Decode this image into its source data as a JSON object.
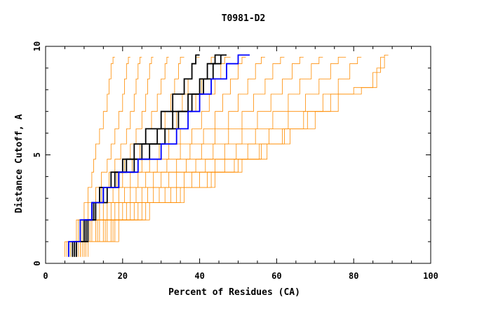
{
  "chart_data": {
    "type": "line",
    "title": "T0981-D2",
    "xlabel": "Percent of Residues (CA)",
    "ylabel": "Distance Cutoff, A",
    "xlim": [
      0,
      100
    ],
    "ylim": [
      0,
      10
    ],
    "xticks": [
      0,
      20,
      40,
      60,
      80,
      100
    ],
    "xtick_labels": [
      "0",
      "20",
      "40",
      "60",
      "80",
      "100"
    ],
    "yticks": [
      0,
      5,
      10
    ],
    "ytick_labels": [
      "0",
      "5",
      "10"
    ],
    "grid": false,
    "legend": "none",
    "colors": {
      "background_curves": "#ff8c00",
      "highlight_black": "#000000",
      "highlight_blue": "#0000ff",
      "axes": "#000000"
    },
    "series": [
      {
        "color": "#ff8c00",
        "x": [
          5,
          8,
          10,
          11,
          12,
          12.5,
          13,
          14,
          15,
          16,
          16.5,
          17,
          17.5,
          18
        ],
        "y": [
          0.3,
          1.0,
          2.0,
          2.8,
          3.5,
          4.2,
          4.8,
          5.5,
          6.2,
          7.0,
          7.8,
          8.5,
          9.2,
          9.5
        ]
      },
      {
        "color": "#ff8c00",
        "x": [
          5.5,
          8.5,
          11,
          13,
          14.5,
          16,
          17,
          18,
          19,
          20,
          20.5,
          21,
          21.5,
          22
        ],
        "y": [
          0.3,
          1.0,
          2.0,
          2.8,
          3.5,
          4.2,
          4.8,
          5.5,
          6.2,
          7.0,
          7.8,
          8.5,
          9.2,
          9.5
        ]
      },
      {
        "color": "#ff8c00",
        "x": [
          6,
          9,
          12,
          14.5,
          16.5,
          18,
          19.5,
          21,
          22,
          23,
          23.5,
          24,
          24.5,
          25
        ],
        "y": [
          0.3,
          1.0,
          2.0,
          2.8,
          3.5,
          4.2,
          4.8,
          5.5,
          6.2,
          7.0,
          7.8,
          8.5,
          9.2,
          9.5
        ]
      },
      {
        "color": "#ff8c00",
        "x": [
          6,
          9.5,
          13,
          16,
          18.5,
          20.5,
          22,
          23.5,
          25,
          26,
          26.5,
          27,
          27.5,
          28
        ],
        "y": [
          0.3,
          1.0,
          2.0,
          2.8,
          3.5,
          4.2,
          4.8,
          5.5,
          6.2,
          7.0,
          7.8,
          8.5,
          9.2,
          9.5
        ]
      },
      {
        "color": "#ff8c00",
        "x": [
          6.5,
          10,
          14,
          17.5,
          20,
          22.5,
          24.5,
          26,
          27.5,
          29,
          30,
          31,
          31.5,
          32
        ],
        "y": [
          0.3,
          1.0,
          2.0,
          2.8,
          3.5,
          4.2,
          4.8,
          5.5,
          6.2,
          7.0,
          7.8,
          8.5,
          9.2,
          9.5
        ]
      },
      {
        "color": "#ff8c00",
        "x": [
          7,
          11,
          15,
          19,
          22,
          25,
          27,
          29,
          31,
          32.5,
          33.5,
          34.5,
          35,
          36
        ],
        "y": [
          0.3,
          1.0,
          2.0,
          2.8,
          3.5,
          4.2,
          4.8,
          5.5,
          6.2,
          7.0,
          7.8,
          8.5,
          9.2,
          9.5
        ]
      },
      {
        "color": "#ff8c00",
        "x": [
          7,
          11.5,
          16,
          20.5,
          24,
          27,
          29.5,
          32,
          34,
          35.5,
          37,
          38,
          39,
          40
        ],
        "y": [
          0.3,
          1.0,
          2.0,
          2.8,
          3.5,
          4.2,
          4.8,
          5.5,
          6.2,
          7.0,
          7.8,
          8.5,
          9.2,
          9.5
        ]
      },
      {
        "color": "#ff8c00",
        "x": [
          7.5,
          12,
          17,
          22,
          26,
          29,
          32,
          35,
          37,
          39,
          40.5,
          42,
          43,
          44
        ],
        "y": [
          0.3,
          1.0,
          2.0,
          2.8,
          3.5,
          4.2,
          4.8,
          5.5,
          6.2,
          7.0,
          7.8,
          8.5,
          9.2,
          9.5
        ]
      },
      {
        "color": "#ff8c00",
        "x": [
          8,
          13,
          18,
          23.5,
          28,
          31.5,
          35,
          38,
          40.5,
          42.5,
          44,
          45.5,
          46.5,
          48
        ],
        "y": [
          0.3,
          1.0,
          2.0,
          2.8,
          3.5,
          4.2,
          4.8,
          5.5,
          6.2,
          7.0,
          7.8,
          8.5,
          9.2,
          9.5
        ]
      },
      {
        "color": "#ff8c00",
        "x": [
          8,
          13.5,
          19,
          25,
          30,
          34,
          37.5,
          41,
          44,
          46,
          48,
          50,
          51,
          52
        ],
        "y": [
          0.3,
          1.0,
          2.0,
          2.8,
          3.5,
          4.2,
          4.8,
          5.5,
          6.2,
          7.0,
          7.8,
          8.5,
          9.2,
          9.5
        ]
      },
      {
        "color": "#ff8c00",
        "x": [
          8.5,
          14,
          20,
          26.5,
          32,
          36.5,
          40.5,
          44,
          47.5,
          50,
          52.5,
          54.5,
          56,
          57
        ],
        "y": [
          0.3,
          1.0,
          2.0,
          2.8,
          3.5,
          4.2,
          4.8,
          5.5,
          6.2,
          7.0,
          7.8,
          8.5,
          9.2,
          9.5
        ]
      },
      {
        "color": "#ff8c00",
        "x": [
          9,
          15,
          21,
          28,
          34,
          39,
          43.5,
          47.5,
          51,
          54,
          57,
          59,
          61,
          62
        ],
        "y": [
          0.3,
          1.0,
          2.0,
          2.8,
          3.5,
          4.2,
          4.8,
          5.5,
          6.2,
          7.0,
          7.8,
          8.5,
          9.2,
          9.5
        ]
      },
      {
        "color": "#ff8c00",
        "x": [
          9,
          15.5,
          22,
          29.5,
          36,
          41.5,
          46.5,
          51,
          55,
          58.5,
          61.5,
          64,
          66,
          67
        ],
        "y": [
          0.3,
          1.0,
          2.0,
          2.8,
          3.5,
          4.2,
          4.8,
          5.5,
          6.2,
          7.0,
          7.8,
          8.5,
          9.2,
          9.5
        ]
      },
      {
        "color": "#ff8c00",
        "x": [
          9.5,
          16,
          23,
          31,
          38,
          44,
          49.5,
          54.5,
          59,
          63,
          66,
          69,
          71,
          72
        ],
        "y": [
          0.3,
          1.0,
          2.0,
          2.8,
          3.5,
          4.2,
          4.8,
          5.5,
          6.2,
          7.0,
          7.8,
          8.5,
          9.2,
          9.5
        ]
      },
      {
        "color": "#ff8c00",
        "x": [
          10,
          17,
          24,
          32.5,
          40,
          46.5,
          52.5,
          58,
          63,
          67.5,
          71,
          74,
          76,
          78
        ],
        "y": [
          0.3,
          1.0,
          2.0,
          2.8,
          3.5,
          4.2,
          4.8,
          5.5,
          6.2,
          7.0,
          7.8,
          8.5,
          9.2,
          9.5
        ]
      },
      {
        "color": "#ff8c00",
        "x": [
          10,
          17.5,
          25,
          34,
          42,
          49,
          55.5,
          61.5,
          67,
          72,
          76,
          79,
          81,
          82
        ],
        "y": [
          0.3,
          1.0,
          2.0,
          2.8,
          3.5,
          4.2,
          4.8,
          5.5,
          6.2,
          7.0,
          7.8,
          8.5,
          9.2,
          9.5
        ]
      },
      {
        "color": "#ff8c00",
        "x": [
          10.5,
          18,
          26,
          35,
          43,
          50,
          56,
          62,
          68,
          74,
          80,
          85,
          87,
          88
        ],
        "y": [
          0.3,
          1.0,
          2.0,
          2.8,
          3.5,
          4.2,
          4.8,
          5.5,
          6.2,
          7.0,
          7.8,
          8.1,
          8.8,
          9.5
        ]
      },
      {
        "color": "#ff8c00",
        "x": [
          11,
          19,
          27,
          36,
          44,
          51,
          57.5,
          63.5,
          70,
          76,
          82,
          86,
          88,
          89
        ],
        "y": [
          0.3,
          1.0,
          2.0,
          2.8,
          3.5,
          4.2,
          4.8,
          5.5,
          6.2,
          7.0,
          7.8,
          8.1,
          9.0,
          9.6
        ]
      },
      {
        "color": "#000000",
        "x": [
          7,
          10,
          12,
          14,
          17,
          20,
          23,
          26,
          30,
          33,
          36,
          38,
          39,
          40
        ],
        "y": [
          0.3,
          1.0,
          2.0,
          2.8,
          3.5,
          4.2,
          4.8,
          5.5,
          6.2,
          7.0,
          7.8,
          8.5,
          9.2,
          9.6
        ]
      },
      {
        "color": "#000000",
        "x": [
          7.5,
          10.5,
          12.5,
          15,
          18,
          21,
          25,
          29,
          33,
          37,
          40,
          42,
          44,
          46
        ],
        "y": [
          0.3,
          1.0,
          2.0,
          2.8,
          3.5,
          4.2,
          4.8,
          5.5,
          6.2,
          7.0,
          7.8,
          8.5,
          9.2,
          9.6
        ]
      },
      {
        "color": "#000000",
        "x": [
          8,
          11,
          13,
          16,
          19,
          23,
          27,
          31,
          34.5,
          38,
          41,
          43.5,
          45.5,
          47
        ],
        "y": [
          0.3,
          1.0,
          2.0,
          2.8,
          3.5,
          4.2,
          4.8,
          5.5,
          6.2,
          7.0,
          7.8,
          8.5,
          9.2,
          9.6
        ]
      },
      {
        "color": "#0000ff",
        "x": [
          6,
          9,
          12,
          15,
          19,
          24,
          30,
          34,
          37,
          40,
          43,
          47,
          50,
          53
        ],
        "y": [
          0.3,
          1.0,
          2.0,
          2.8,
          3.5,
          4.2,
          4.8,
          5.5,
          6.2,
          7.0,
          7.8,
          8.5,
          9.2,
          9.6
        ]
      }
    ]
  }
}
